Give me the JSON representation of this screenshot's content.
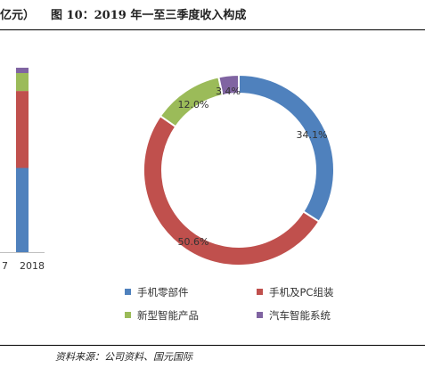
{
  "header": {
    "left_fragment": "亿元）",
    "title": "图 10：2019 年一至三季度收入构成"
  },
  "footer": {
    "source": "资料来源：公司资料、国元国际"
  },
  "chart_data": [
    {
      "type": "bar",
      "stacked": true,
      "partial": true,
      "categories": [
        "2018"
      ],
      "prev_tick_fragment": "7",
      "series": [
        {
          "name": "手机零部件",
          "color": "#4f81bd",
          "values": [
            47
          ]
        },
        {
          "name": "手机及PC组装",
          "color": "#c0504d",
          "values": [
            43
          ]
        },
        {
          "name": "新型智能产品",
          "color": "#9bbb59",
          "values": [
            10
          ]
        },
        {
          "name": "汽车智能系统",
          "color": "#8064a2",
          "values": [
            3
          ]
        }
      ]
    },
    {
      "type": "pie",
      "donut": true,
      "title": "",
      "slices": [
        {
          "name": "手机零部件",
          "value": 34.1,
          "label": "34.1%",
          "color": "#4f81bd"
        },
        {
          "name": "手机及PC组装",
          "value": 50.6,
          "label": "50.6%",
          "color": "#c0504d"
        },
        {
          "name": "新型智能产品",
          "value": 12.0,
          "label": "12.0%",
          "color": "#9bbb59"
        },
        {
          "name": "汽车智能系统",
          "value": 3.4,
          "label": "3.4%",
          "color": "#8064a2"
        }
      ],
      "legend": {
        "placement": "bottom",
        "entries": [
          "手机零部件",
          "手机及PC组装",
          "新型智能产品",
          "汽车智能系统"
        ]
      }
    }
  ]
}
